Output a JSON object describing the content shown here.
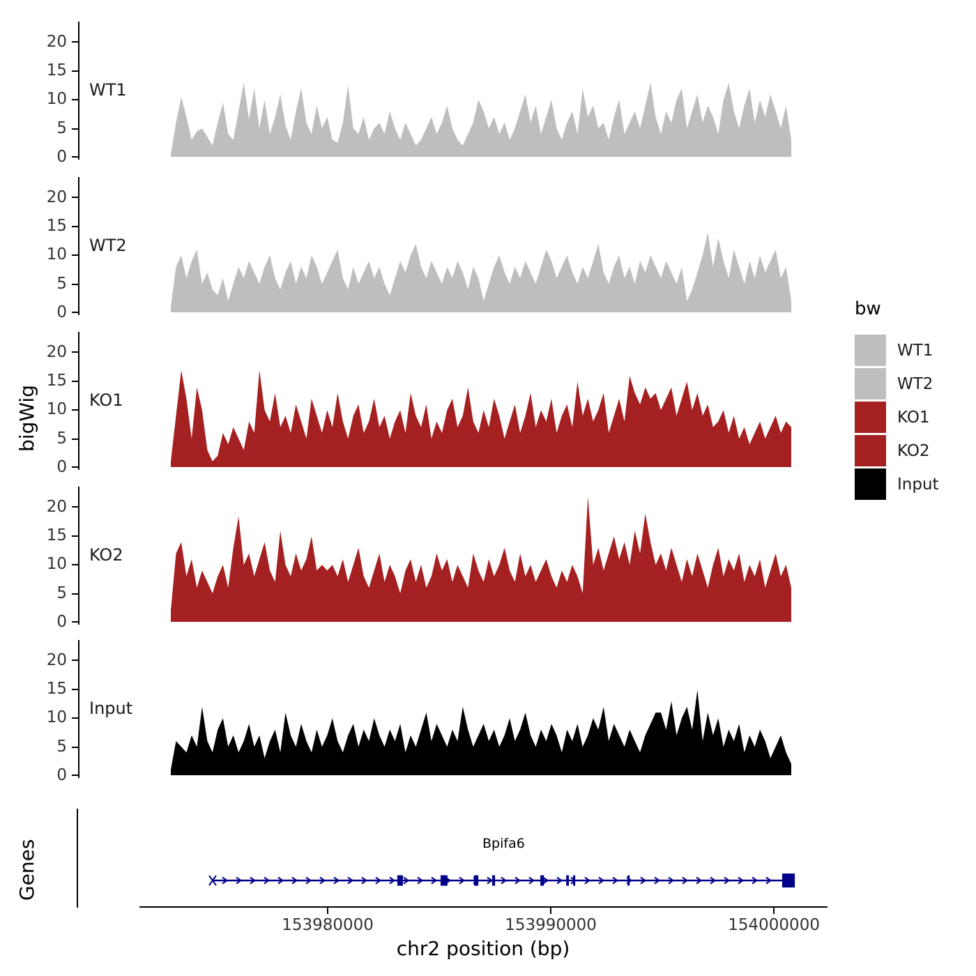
{
  "figure": {
    "y_axis_label": "bigWig",
    "genes_panel_label": "Genes",
    "x_axis_label": "chr2 position (bp)",
    "y_ticks": [
      "20",
      "15",
      "10",
      "5",
      "0"
    ],
    "x_ticks": [
      {
        "label": "153980000",
        "bp": 153980000
      },
      {
        "label": "153990000",
        "bp": 153990000
      },
      {
        "label": "154000000",
        "bp": 154000000
      }
    ],
    "x_range_bp": [
      153971560,
      154002340
    ],
    "colors": {
      "wt": "#bebebe",
      "ko": "#a52020",
      "input": "#000000",
      "gene": "#00008b"
    }
  },
  "legend": {
    "title": "bw",
    "items": [
      {
        "label": "WT1",
        "color": "#bebebe"
      },
      {
        "label": "WT2",
        "color": "#bebebe"
      },
      {
        "label": "KO1",
        "color": "#a52020"
      },
      {
        "label": "KO2",
        "color": "#a52020"
      },
      {
        "label": "Input",
        "color": "#000000"
      }
    ]
  },
  "chart_data": {
    "type": "area",
    "title": "",
    "xlabel": "chr2 position (bp)",
    "ylabel": "bigWig",
    "x_range_bp": [
      153972970,
      154000780
    ],
    "tracks": [
      {
        "name": "WT1",
        "color": "#bebebe",
        "ylim": [
          0,
          23
        ],
        "values": [
          0.5,
          6,
          10.5,
          7,
          3,
          4.5,
          5,
          3.5,
          2,
          6,
          9.5,
          4,
          3,
          8,
          13,
          6.5,
          12,
          5,
          10,
          4,
          7,
          11,
          5.5,
          3,
          8,
          12,
          6,
          4,
          9,
          5,
          7,
          3,
          2.5,
          6,
          12.5,
          5,
          4,
          7,
          3,
          5,
          6,
          4,
          8,
          5,
          3,
          6,
          4,
          2,
          3,
          5,
          7,
          4,
          6,
          9,
          5,
          3,
          2,
          4,
          6,
          10,
          8,
          5,
          7,
          4,
          6,
          3,
          5,
          8,
          11,
          6,
          9,
          4,
          7,
          10,
          5,
          3,
          6,
          8,
          4,
          12,
          7,
          9,
          5,
          6,
          3,
          7,
          10,
          4,
          6,
          8,
          5,
          9,
          13,
          7,
          4,
          8,
          6,
          10,
          12,
          5,
          8,
          11,
          6,
          9,
          7,
          4,
          10,
          13,
          8,
          5,
          9,
          12,
          6,
          10,
          7,
          11,
          8,
          5,
          9,
          3
        ]
      },
      {
        "name": "WT2",
        "color": "#bebebe",
        "ylim": [
          0,
          23
        ],
        "values": [
          1,
          8,
          10,
          6,
          9,
          11,
          5,
          7,
          4,
          3,
          6,
          2,
          5,
          8,
          6,
          9,
          7,
          5,
          8,
          10,
          6,
          4,
          7,
          9,
          5,
          8,
          6,
          10,
          8,
          5,
          7,
          9,
          11,
          6,
          4,
          8,
          5,
          7,
          9,
          6,
          8,
          5,
          3,
          6,
          9,
          7,
          10,
          12,
          8,
          6,
          9,
          7,
          5,
          8,
          6,
          9,
          7,
          4,
          8,
          6,
          2,
          5,
          8,
          10,
          7,
          5,
          8,
          6,
          9,
          7,
          5,
          8,
          11,
          9,
          6,
          8,
          10,
          7,
          5,
          8,
          6,
          9,
          12,
          7,
          5,
          8,
          10,
          6,
          8,
          5,
          9,
          7,
          10,
          8,
          6,
          9,
          7,
          5,
          8,
          2,
          4,
          7,
          10,
          14,
          8,
          13,
          9,
          6,
          11,
          8,
          5,
          9,
          6,
          10,
          7,
          9,
          11,
          6,
          8,
          2
        ]
      },
      {
        "name": "KO1",
        "color": "#a52020",
        "ylim": [
          0,
          23
        ],
        "values": [
          1,
          9,
          17,
          12,
          5,
          14,
          10,
          3,
          1,
          2,
          6,
          4,
          7,
          5,
          3,
          8,
          6,
          17,
          10,
          8,
          13,
          7,
          9,
          6,
          11,
          8,
          5,
          12,
          9,
          6,
          10,
          7,
          13,
          8,
          5,
          9,
          11,
          6,
          8,
          12,
          7,
          9,
          5,
          8,
          10,
          6,
          13,
          9,
          7,
          11,
          5,
          8,
          6,
          10,
          12,
          7,
          9,
          14,
          8,
          6,
          10,
          7,
          12,
          9,
          5,
          8,
          11,
          6,
          9,
          13,
          7,
          10,
          8,
          12,
          6,
          9,
          11,
          7,
          15,
          9,
          12,
          8,
          10,
          13,
          6,
          9,
          12,
          8,
          16,
          13,
          11,
          14,
          12,
          13,
          10,
          12,
          14,
          9,
          12,
          15,
          10,
          13,
          9,
          11,
          7,
          8,
          10,
          6,
          9,
          5,
          7,
          4,
          6,
          8,
          5,
          7,
          9,
          6,
          8,
          7
        ]
      },
      {
        "name": "KO2",
        "color": "#a52020",
        "ylim": [
          0,
          23
        ],
        "values": [
          2,
          12,
          14,
          8,
          11,
          6,
          9,
          7,
          5,
          8,
          10,
          6,
          13,
          18.5,
          10,
          12,
          8,
          11,
          14,
          9,
          7,
          16,
          10,
          8,
          12,
          9,
          11,
          15,
          9,
          10,
          9,
          10,
          8,
          11,
          7,
          10,
          13,
          8,
          6,
          9,
          12,
          7,
          10,
          8,
          5,
          9,
          11,
          7,
          10,
          6,
          8,
          12,
          9,
          11,
          7,
          10,
          8,
          6,
          12,
          9,
          7,
          11,
          8,
          10,
          13,
          9,
          7,
          12,
          8,
          10,
          7,
          9,
          11,
          8,
          6,
          9,
          7,
          10,
          8,
          5,
          22,
          10,
          13,
          9,
          12,
          15,
          11,
          14,
          10,
          16,
          12,
          19,
          14,
          10,
          12,
          9,
          13,
          10,
          7,
          11,
          8,
          12,
          9,
          6,
          10,
          13,
          8,
          11,
          9,
          12,
          7,
          10,
          8,
          11,
          6,
          9,
          12,
          8,
          10,
          6
        ]
      },
      {
        "name": "Input",
        "color": "#000000",
        "ylim": [
          0,
          23
        ],
        "values": [
          1,
          6,
          5,
          4,
          7,
          5,
          12,
          6,
          4,
          8,
          10,
          5,
          7,
          4,
          6,
          9,
          5,
          7,
          3,
          6,
          8,
          4,
          11,
          7,
          5,
          9,
          6,
          4,
          8,
          5,
          7,
          10,
          6,
          4,
          7,
          9,
          5,
          8,
          6,
          10,
          7,
          5,
          8,
          6,
          9,
          4,
          7,
          5,
          8,
          11,
          6,
          9,
          7,
          5,
          8,
          6,
          12,
          8,
          5,
          7,
          9,
          6,
          8,
          5,
          7,
          10,
          6,
          8,
          11,
          7,
          5,
          8,
          6,
          9,
          7,
          4,
          8,
          6,
          9,
          5,
          7,
          10,
          8,
          12,
          6,
          9,
          7,
          5,
          8,
          6,
          4,
          7,
          9,
          11,
          11,
          8,
          13,
          7,
          10,
          12,
          8,
          15,
          6,
          11,
          7,
          10,
          5,
          8,
          6,
          9,
          4,
          7,
          5,
          8,
          6,
          3,
          5,
          7,
          4,
          2
        ]
      }
    ],
    "gene": {
      "name": "Bpifa6",
      "chrom": "chr2",
      "strand": "+",
      "start": 153974840,
      "end": 154000930,
      "exons": [
        [
          153983120,
          153983370
        ],
        [
          153985060,
          153985370
        ],
        [
          153986560,
          153986750
        ],
        [
          153987370,
          153987500
        ],
        [
          153989530,
          153989690
        ],
        [
          153990690,
          153990810
        ],
        [
          153991000,
          153991090
        ],
        [
          153993440,
          153993530
        ],
        [
          154000370,
          154000935
        ]
      ]
    }
  }
}
